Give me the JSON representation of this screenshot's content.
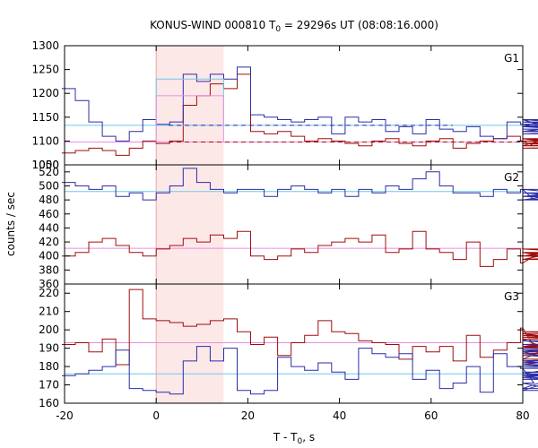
{
  "chart_data": {
    "type": "line",
    "title": "KONUS-WIND 000810 T",
    "title_sub": "0",
    "title_rest": " = 29296s UT (08:08:16.000)",
    "xlabel": "T - T",
    "xlabel_sub": "0",
    "xlabel_rest": ", s",
    "ylabel": "counts / sec",
    "xlim": [
      -20,
      80
    ],
    "xticks": [
      "-20",
      "0",
      "20",
      "40",
      "60",
      "80"
    ],
    "highlight": {
      "x0": 0,
      "x1": 14.7,
      "color": "#fde8e8"
    },
    "bin_width": 2.944,
    "bin_start": -20.6,
    "colors": {
      "blue": "#2c2ca8",
      "red": "#a00d0d",
      "cyan": "#6ec8ea",
      "pink": "#e88ee0"
    },
    "panels": [
      {
        "label": "G1",
        "ylim": [
          1050,
          1300
        ],
        "yticks": [
          "1050",
          "1100",
          "1150",
          "1200",
          "1250",
          "1300"
        ],
        "bottom_tick": "1000",
        "bg_blue": 1133,
        "bg_red": 1098,
        "blue": [
          1210,
          1185,
          1140,
          1110,
          1100,
          1120,
          1145,
          1135,
          1140,
          1240,
          1225,
          1240,
          1230,
          1255,
          1155,
          1150,
          1145,
          1140,
          1145,
          1150,
          1115,
          1150,
          1140,
          1145,
          1120,
          1130,
          1115,
          1145,
          1125,
          1120,
          1130,
          1110,
          1105,
          1140,
          1135,
          1130,
          1145,
          1120,
          1135,
          1140,
          1130,
          1145,
          1130,
          1115,
          1125,
          1120,
          1135,
          1140,
          1130,
          1135,
          1140,
          1130,
          1135,
          1140,
          1135,
          1130,
          1140,
          1135,
          1130,
          1140,
          1135
        ],
        "red": [
          1075,
          1080,
          1085,
          1080,
          1070,
          1085,
          1100,
          1095,
          1100,
          1175,
          1195,
          1220,
          1210,
          1240,
          1120,
          1115,
          1120,
          1110,
          1100,
          1105,
          1100,
          1095,
          1090,
          1100,
          1105,
          1095,
          1090,
          1100,
          1105,
          1085,
          1095,
          1100,
          1105,
          1110,
          1100,
          1090,
          1105,
          1095,
          1100,
          1105,
          1090,
          1095,
          1105,
          1095,
          1090,
          1100,
          1095,
          1085,
          1095,
          1100,
          1105,
          1090,
          1095,
          1100,
          1085,
          1095,
          1100,
          1090,
          1095,
          1100,
          1095
        ],
        "model_blue": [
          1230,
          1230,
          1230,
          1230,
          1230
        ],
        "model_red": [
          1195,
          1195,
          1195,
          1195,
          1195
        ]
      },
      {
        "label": "G2",
        "ylim": [
          360,
          530
        ],
        "yticks": [
          "360",
          "380",
          "400",
          "420",
          "440",
          "460",
          "480",
          "500",
          "520"
        ],
        "bg_blue": 492,
        "bg_red": 411,
        "blue": [
          505,
          500,
          495,
          500,
          485,
          490,
          480,
          490,
          500,
          525,
          505,
          495,
          490,
          495,
          495,
          485,
          495,
          500,
          495,
          490,
          495,
          485,
          495,
          490,
          500,
          495,
          510,
          520,
          500,
          490,
          490,
          485,
          495,
          490,
          495,
          480,
          485,
          490,
          485,
          495,
          485,
          490,
          485,
          480,
          490,
          485,
          490,
          485,
          490,
          485,
          480,
          490,
          485,
          490,
          485,
          480,
          490,
          485,
          490,
          485,
          490
        ],
        "red": [
          400,
          405,
          420,
          425,
          415,
          405,
          400,
          410,
          415,
          425,
          420,
          430,
          425,
          435,
          400,
          395,
          400,
          410,
          405,
          415,
          420,
          425,
          420,
          430,
          405,
          410,
          435,
          410,
          405,
          395,
          420,
          385,
          395,
          410,
          390,
          400,
          405,
          395,
          410,
          405,
          395,
          400,
          410,
          400,
          395,
          405,
          400,
          410,
          405,
          395,
          400,
          405,
          395,
          410,
          400,
          405,
          395,
          400,
          405,
          395,
          400
        ]
      },
      {
        "label": "G3",
        "ylim": [
          160,
          225
        ],
        "yticks": [
          "160",
          "170",
          "180",
          "190",
          "200",
          "210",
          "220"
        ],
        "bg_blue": 176,
        "bg_red": 193,
        "blue": [
          175,
          176,
          178,
          180,
          189,
          168,
          167,
          166,
          165,
          183,
          191,
          183,
          190,
          167,
          165,
          167,
          185,
          180,
          178,
          182,
          177,
          173,
          190,
          187,
          185,
          187,
          173,
          178,
          168,
          171,
          180,
          166,
          187,
          180,
          179,
          171,
          168,
          175,
          176,
          182,
          188,
          176,
          175,
          167,
          189,
          180,
          183,
          174,
          189,
          177,
          175,
          173,
          181,
          175,
          188,
          192,
          194,
          186,
          179,
          183,
          190
        ],
        "red": [
          192,
          193,
          188,
          195,
          181,
          222,
          206,
          205,
          204,
          202,
          203,
          205,
          206,
          199,
          192,
          196,
          186,
          193,
          197,
          205,
          199,
          198,
          194,
          193,
          192,
          184,
          191,
          188,
          191,
          183,
          197,
          185,
          189,
          193,
          201,
          191,
          190,
          195,
          184,
          199,
          198,
          192,
          189,
          187,
          181,
          191,
          198,
          183,
          188,
          190,
          196,
          197,
          189,
          194,
          187,
          191,
          199,
          196,
          188,
          192,
          195
        ]
      }
    ]
  }
}
